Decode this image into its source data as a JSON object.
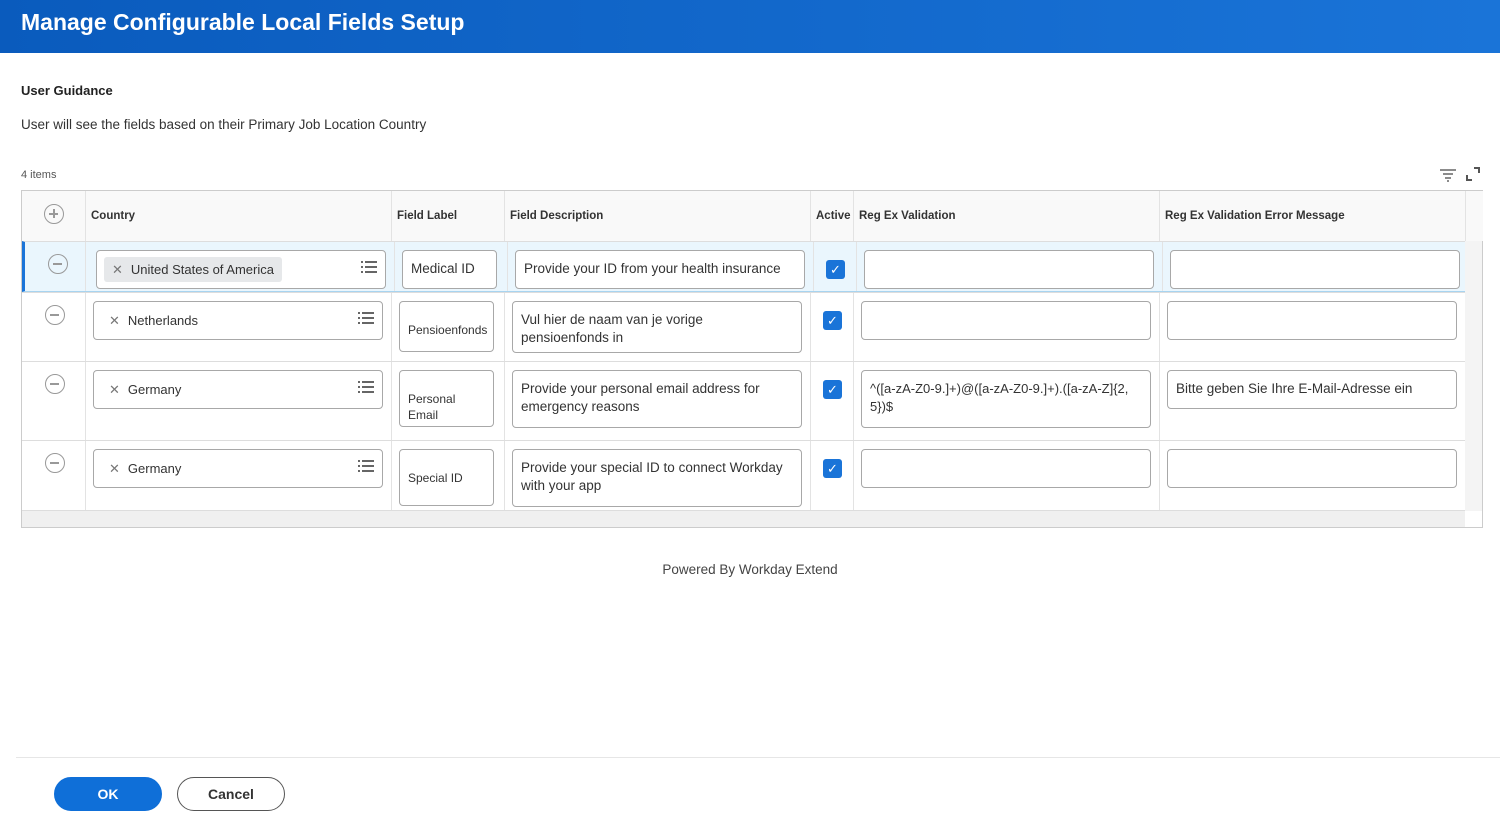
{
  "header": {
    "title": "Manage Configurable Local Fields Setup"
  },
  "guidance": {
    "title": "User Guidance",
    "text": "User will see the fields based on their Primary Job Location Country"
  },
  "table": {
    "count": "4 items",
    "columns": [
      "Country",
      "Field Label",
      "Field Description",
      "Active",
      "Reg Ex Validation",
      "Reg Ex Validation Error Message"
    ],
    "rows": [
      {
        "country": "United States of America",
        "label": "Medical ID",
        "description": "Provide your ID from your health insurance",
        "active": true,
        "regex": "",
        "error": ""
      },
      {
        "country": "Netherlands",
        "label": "Pensioenfonds",
        "description": "Vul hier de naam van je vorige pensioenfonds in",
        "active": true,
        "regex": "",
        "error": ""
      },
      {
        "country": "Germany",
        "label": "Personal Email",
        "description": "Provide your personal email address for emergency reasons",
        "active": true,
        "regex": "^([a-zA-Z0-9.]+)@([a-zA-Z0-9.]+).([a-zA-Z]{2, 5})$",
        "error": "Bitte geben Sie Ihre E-Mail-Adresse ein"
      },
      {
        "country": "Germany",
        "label": "Special ID",
        "description": "Provide your special ID to connect Workday with your app",
        "active": true,
        "regex": "",
        "error": ""
      }
    ]
  },
  "footer": {
    "powered": "Powered By Workday Extend",
    "ok": "OK",
    "cancel": "Cancel"
  },
  "colors": {
    "brand": "#0f6fd8",
    "header": "#0a5bbd"
  }
}
